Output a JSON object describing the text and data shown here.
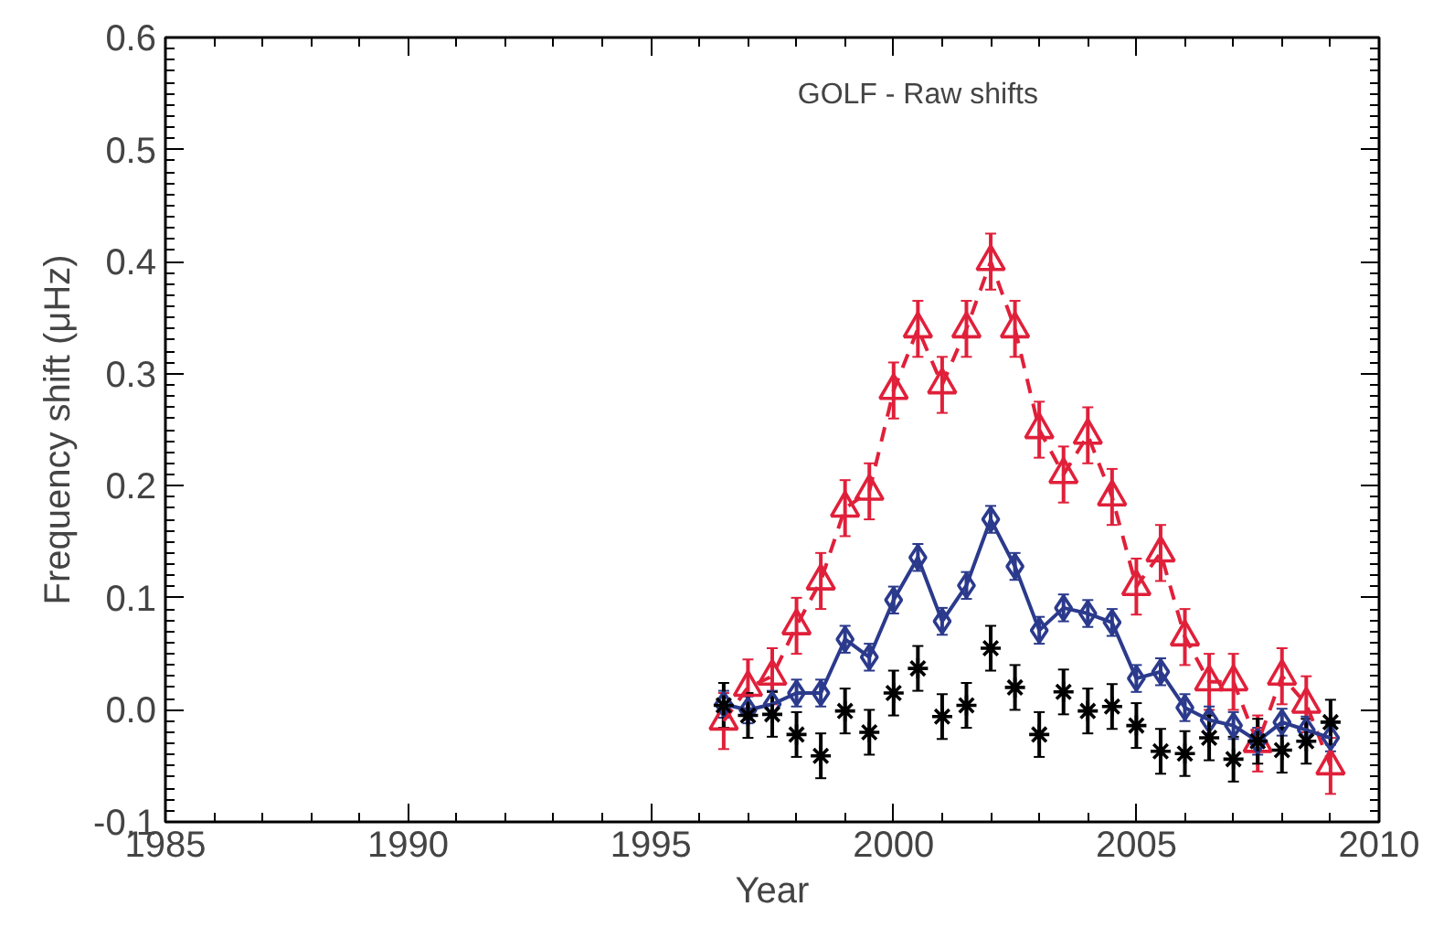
{
  "chart_data": {
    "type": "line",
    "title": "GOLF - Raw shifts",
    "xlabel": "Year",
    "ylabel": "Frequency shift (μHz)",
    "x": [
      1996.5,
      1997,
      1997.5,
      1998,
      1998.5,
      1999,
      1999.5,
      2000,
      2000.5,
      2001,
      2001.5,
      2002,
      2002.5,
      2003,
      2003.5,
      2004,
      2004.5,
      2005,
      2005.5,
      2006,
      2006.5,
      2007,
      2007.5,
      2008,
      2008.5,
      2009
    ],
    "xlim": [
      1985,
      2010
    ],
    "xticks": [
      1985,
      1990,
      1995,
      2000,
      2005,
      2010
    ],
    "ylim": [
      -0.1,
      0.6
    ],
    "yticks": [
      -0.1,
      "0.0",
      0.1,
      0.2,
      0.3,
      0.4,
      0.5,
      0.6
    ],
    "grid": false,
    "series": [
      {
        "color": "#e0203a",
        "marker": "triangle",
        "line_style": "dashed",
        "values": [
          -0.01,
          0.02,
          0.03,
          0.075,
          0.115,
          0.18,
          0.195,
          0.285,
          0.34,
          0.29,
          0.34,
          0.4,
          0.34,
          0.25,
          0.21,
          0.245,
          0.19,
          0.11,
          0.14,
          0.065,
          0.025,
          0.025,
          -0.03,
          0.03,
          0.005,
          -0.05
        ],
        "errors": [
          0.025,
          0.025,
          0.025,
          0.025,
          0.025,
          0.025,
          0.025,
          0.025,
          0.025,
          0.025,
          0.025,
          0.025,
          0.025,
          0.025,
          0.025,
          0.025,
          0.025,
          0.025,
          0.025,
          0.025,
          0.025,
          0.025,
          0.025,
          0.025,
          0.025,
          0.025
        ]
      },
      {
        "color": "#2b3a8c",
        "marker": "diamond",
        "line_style": "solid",
        "values": [
          0.005,
          0.0,
          0.005,
          0.015,
          0.015,
          0.063,
          0.047,
          0.098,
          0.136,
          0.079,
          0.111,
          0.17,
          0.128,
          0.071,
          0.091,
          0.086,
          0.078,
          0.028,
          0.034,
          0.002,
          -0.009,
          -0.014,
          -0.028,
          -0.011,
          -0.018,
          -0.025
        ],
        "errors": [
          0.012,
          0.012,
          0.012,
          0.012,
          0.012,
          0.012,
          0.012,
          0.012,
          0.012,
          0.012,
          0.012,
          0.012,
          0.012,
          0.012,
          0.012,
          0.012,
          0.012,
          0.012,
          0.012,
          0.012,
          0.012,
          0.012,
          0.012,
          0.012,
          0.012,
          0.012
        ]
      },
      {
        "type": "scatter",
        "color": "#000000",
        "marker": "cross",
        "values": [
          0.004,
          -0.005,
          -0.004,
          -0.022,
          -0.041,
          -0.001,
          -0.02,
          0.015,
          0.037,
          -0.006,
          0.004,
          0.055,
          0.02,
          -0.022,
          0.016,
          -0.001,
          0.003,
          -0.014,
          -0.037,
          -0.039,
          -0.025,
          -0.044,
          -0.028,
          -0.036,
          -0.028,
          -0.011
        ],
        "errors": [
          0.02,
          0.02,
          0.02,
          0.02,
          0.02,
          0.02,
          0.02,
          0.02,
          0.02,
          0.02,
          0.02,
          0.02,
          0.02,
          0.02,
          0.02,
          0.02,
          0.02,
          0.02,
          0.02,
          0.02,
          0.02,
          0.02,
          0.02,
          0.02,
          0.02,
          0.02
        ]
      }
    ]
  }
}
